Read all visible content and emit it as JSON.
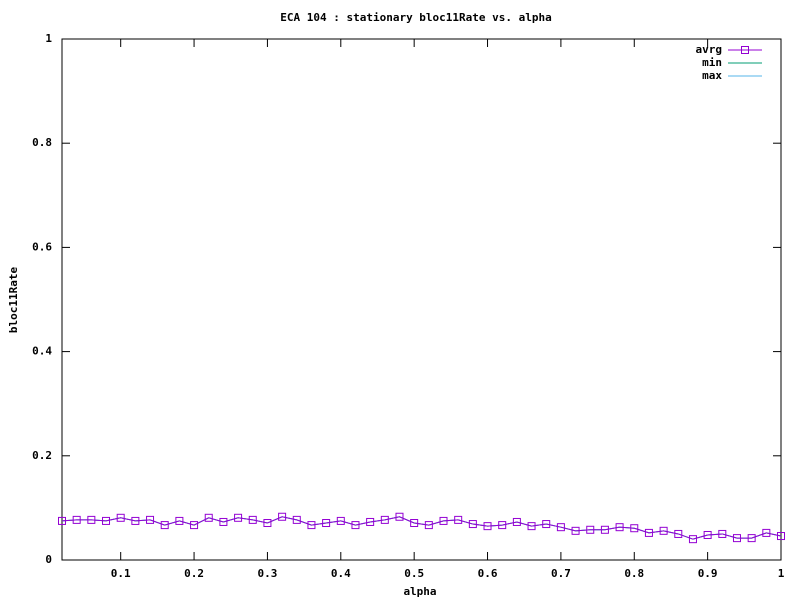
{
  "chart_data": {
    "type": "line",
    "title": "ECA 104 : stationary bloc11Rate vs. alpha",
    "x_label": "alpha",
    "y_label": "bloc11Rate",
    "x": [
      0.02,
      0.04,
      0.06,
      0.08,
      0.1,
      0.12,
      0.14,
      0.16,
      0.18,
      0.2,
      0.22,
      0.24,
      0.26,
      0.28,
      0.3,
      0.32,
      0.34,
      0.36,
      0.38,
      0.4,
      0.42,
      0.44,
      0.46,
      0.48,
      0.5,
      0.52,
      0.54,
      0.56,
      0.58,
      0.6,
      0.62,
      0.64,
      0.66,
      0.68,
      0.7,
      0.72,
      0.74,
      0.76,
      0.78,
      0.8,
      0.82,
      0.84,
      0.86,
      0.88,
      0.9,
      0.92,
      0.94,
      0.96,
      0.98,
      1
    ],
    "series": [
      {
        "name": "avrg",
        "color": "#9400d3",
        "marker": "square",
        "values": [
          0.075,
          0.077,
          0.077,
          0.075,
          0.081,
          0.075,
          0.077,
          0.067,
          0.075,
          0.067,
          0.081,
          0.073,
          0.081,
          0.077,
          0.071,
          0.083,
          0.077,
          0.067,
          0.071,
          0.075,
          0.067,
          0.073,
          0.077,
          0.083,
          0.071,
          0.067,
          0.075,
          0.077,
          0.069,
          0.065,
          0.067,
          0.073,
          0.065,
          0.069,
          0.063,
          0.056,
          0.058,
          0.058,
          0.063,
          0.061,
          0.052,
          0.056,
          0.05,
          0.04,
          0.048,
          0.05,
          0.042,
          0.042,
          0.052,
          0.046
        ]
      },
      {
        "name": "min",
        "color": "#009e73",
        "values": [
          0.075,
          0.077,
          0.077,
          0.075,
          0.081,
          0.075,
          0.077,
          0.067,
          0.075,
          0.067,
          0.081,
          0.073,
          0.081,
          0.077,
          0.071,
          0.083,
          0.077,
          0.067,
          0.071,
          0.075,
          0.067,
          0.073,
          0.077,
          0.083,
          0.071,
          0.067,
          0.075,
          0.077,
          0.069,
          0.065,
          0.067,
          0.073,
          0.065,
          0.069,
          0.063,
          0.056,
          0.058,
          0.058,
          0.063,
          0.061,
          0.052,
          0.056,
          0.05,
          0.04,
          0.048,
          0.05,
          0.042,
          0.042,
          0.052,
          0.046
        ]
      },
      {
        "name": "max",
        "color": "#56b4e9",
        "values": [
          0.075,
          0.077,
          0.077,
          0.075,
          0.081,
          0.075,
          0.077,
          0.067,
          0.075,
          0.067,
          0.081,
          0.073,
          0.081,
          0.077,
          0.071,
          0.083,
          0.077,
          0.067,
          0.071,
          0.075,
          0.067,
          0.073,
          0.077,
          0.083,
          0.071,
          0.067,
          0.075,
          0.077,
          0.069,
          0.065,
          0.067,
          0.073,
          0.065,
          0.069,
          0.063,
          0.056,
          0.058,
          0.058,
          0.063,
          0.061,
          0.052,
          0.056,
          0.05,
          0.04,
          0.048,
          0.05,
          0.042,
          0.042,
          0.052,
          0.046
        ]
      }
    ],
    "xlim": [
      0.02,
      1
    ],
    "ylim": [
      0,
      1
    ],
    "xticks": [
      0.1,
      0.2,
      0.3,
      0.4,
      0.5,
      0.6,
      0.7,
      0.8,
      0.9,
      1
    ],
    "yticks": [
      0,
      0.2,
      0.4,
      0.6,
      0.8,
      1
    ],
    "legend": "top-right",
    "grid": false
  }
}
